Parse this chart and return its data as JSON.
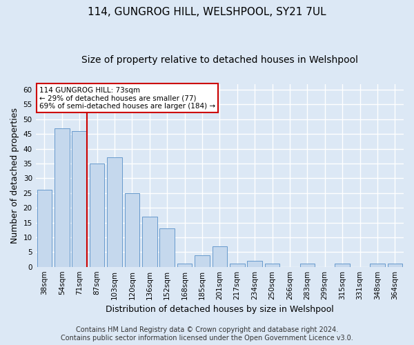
{
  "title": "114, GUNGROG HILL, WELSHPOOL, SY21 7UL",
  "subtitle": "Size of property relative to detached houses in Welshpool",
  "xlabel": "Distribution of detached houses by size in Welshpool",
  "ylabel": "Number of detached properties",
  "categories": [
    "38sqm",
    "54sqm",
    "71sqm",
    "87sqm",
    "103sqm",
    "120sqm",
    "136sqm",
    "152sqm",
    "168sqm",
    "185sqm",
    "201sqm",
    "217sqm",
    "234sqm",
    "250sqm",
    "266sqm",
    "283sqm",
    "299sqm",
    "315sqm",
    "331sqm",
    "348sqm",
    "364sqm"
  ],
  "values": [
    26,
    47,
    46,
    35,
    37,
    25,
    17,
    13,
    1,
    4,
    7,
    1,
    2,
    1,
    0,
    1,
    0,
    1,
    0,
    1,
    1
  ],
  "bar_color": "#c5d8ed",
  "bar_edge_color": "#6699cc",
  "highlight_index": 2,
  "highlight_line_color": "#cc0000",
  "ylim": [
    0,
    62
  ],
  "yticks": [
    0,
    5,
    10,
    15,
    20,
    25,
    30,
    35,
    40,
    45,
    50,
    55,
    60
  ],
  "annotation_title": "114 GUNGROG HILL: 73sqm",
  "annotation_line1": "← 29% of detached houses are smaller (77)",
  "annotation_line2": "69% of semi-detached houses are larger (184) →",
  "annotation_box_color": "#ffffff",
  "annotation_box_edge": "#cc0000",
  "footer_line1": "Contains HM Land Registry data © Crown copyright and database right 2024.",
  "footer_line2": "Contains public sector information licensed under the Open Government Licence v3.0.",
  "background_color": "#dce8f5",
  "bar_area_background": "#dce8f5",
  "grid_color": "#ffffff",
  "title_fontsize": 11,
  "subtitle_fontsize": 10,
  "axis_label_fontsize": 9,
  "tick_fontsize": 7.5,
  "footer_fontsize": 7
}
